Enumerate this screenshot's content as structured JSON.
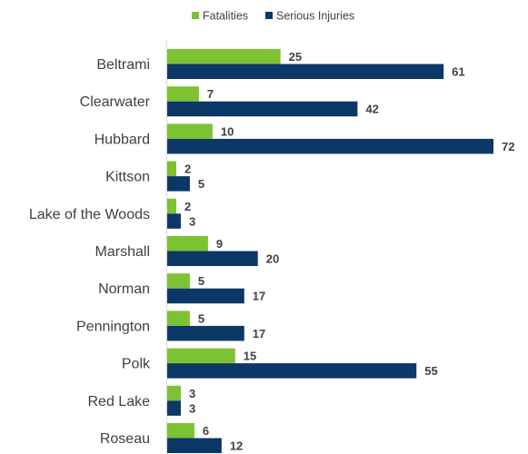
{
  "chart_data": {
    "type": "bar",
    "orientation": "horizontal",
    "categories": [
      "Beltrami",
      "Clearwater",
      "Hubbard",
      "Kittson",
      "Lake of the Woods",
      "Marshall",
      "Norman",
      "Pennington",
      "Polk",
      "Red Lake",
      "Roseau"
    ],
    "series": [
      {
        "name": "Fatalities",
        "color": "#7dc233",
        "values": [
          25,
          7,
          10,
          2,
          2,
          9,
          5,
          5,
          15,
          3,
          6
        ]
      },
      {
        "name": "Serious Injuries",
        "color": "#0b3866",
        "values": [
          61,
          42,
          72,
          5,
          3,
          20,
          17,
          17,
          55,
          3,
          12
        ]
      }
    ],
    "title": "",
    "xlabel": "",
    "ylabel": "",
    "xlim": [
      0,
      72
    ],
    "grid": false,
    "legend": "top-center",
    "data_labels": true,
    "axis_color": "#d9d9d9"
  }
}
